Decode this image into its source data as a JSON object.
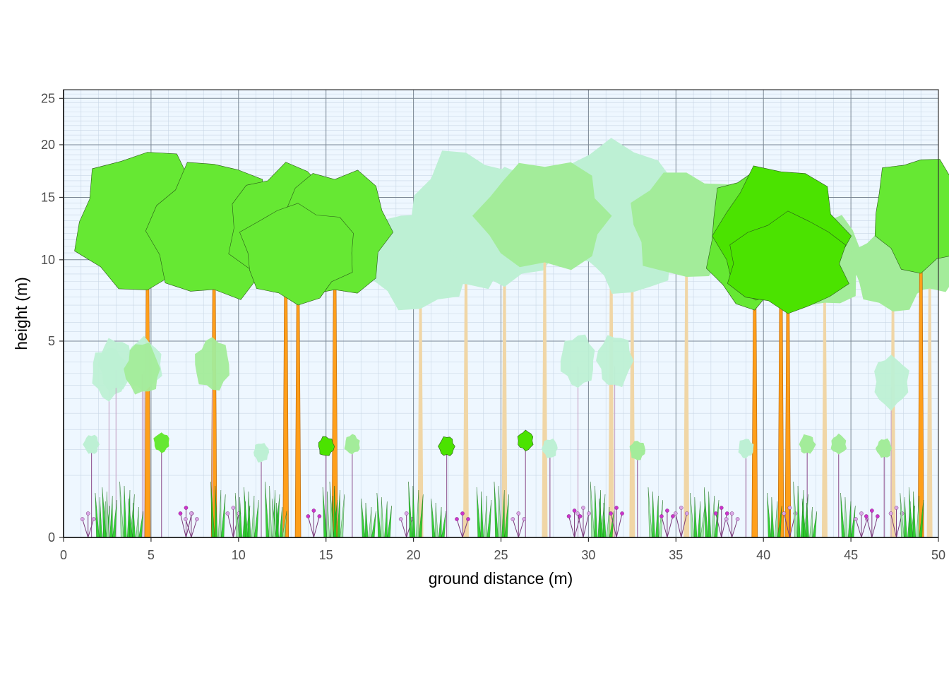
{
  "chart_data": {
    "type": "other",
    "description_kind": "vegetation profile",
    "xlabel": "ground distance (m)",
    "ylabel": "height (m)",
    "xlim": [
      0,
      50
    ],
    "ylim": [
      0,
      26
    ],
    "y_scale": "sqrt",
    "x_ticks": [
      0,
      5,
      10,
      15,
      20,
      25,
      30,
      35,
      40,
      45,
      50
    ],
    "y_ticks": [
      0,
      5,
      10,
      15,
      20,
      25
    ],
    "grid": true,
    "colors": {
      "panel_background": "#eef7ff",
      "major_grid": "#7a8794",
      "minor_grid": "#c9d7e6",
      "trunk": "#ff9f1a",
      "trunk_faded": "#f0d6a6",
      "crown_bright": "#4be300",
      "crown_green": "#66e833",
      "crown_light": "#a3ec9a",
      "crown_pale": "#bdf0d4",
      "flower": "#cc33cc",
      "grass": "#22cc22"
    },
    "trees": [
      {
        "x": 4.8,
        "height": 19,
        "crown_base": 8,
        "crown_width": 9,
        "tone": "green"
      },
      {
        "x": 8.6,
        "height": 18,
        "crown_base": 7.5,
        "crown_width": 8,
        "tone": "green"
      },
      {
        "x": 12.7,
        "height": 17.5,
        "crown_base": 8.2,
        "crown_width": 7,
        "tone": "green"
      },
      {
        "x": 15.5,
        "height": 17.3,
        "crown_base": 7.8,
        "crown_width": 7,
        "tone": "green"
      },
      {
        "x": 13.4,
        "height": 14,
        "crown_base": 7.5,
        "crown_width": 7,
        "tone": "green"
      },
      {
        "x": 20.4,
        "height": 13.5,
        "crown_base": 7,
        "crown_width": 6.5,
        "tone": "pale"
      },
      {
        "x": 23.0,
        "height": 19,
        "crown_base": 8,
        "crown_width": 7,
        "tone": "pale"
      },
      {
        "x": 25.2,
        "height": 17,
        "crown_base": 8.5,
        "crown_width": 6.5,
        "tone": "pale"
      },
      {
        "x": 27.5,
        "height": 18,
        "crown_base": 9.5,
        "crown_width": 8,
        "tone": "light"
      },
      {
        "x": 31.3,
        "height": 20,
        "crown_base": 9,
        "crown_width": 8,
        "tone": "pale"
      },
      {
        "x": 32.5,
        "height": 15,
        "crown_base": 8,
        "crown_width": 6,
        "tone": "pale"
      },
      {
        "x": 35.6,
        "height": 17,
        "crown_base": 9,
        "crown_width": 7,
        "tone": "light"
      },
      {
        "x": 39.5,
        "height": 17,
        "crown_base": 7,
        "crown_width": 6,
        "tone": "green"
      },
      {
        "x": 41.0,
        "height": 17.5,
        "crown_base": 7.2,
        "crown_width": 8,
        "tone": "bright"
      },
      {
        "x": 41.4,
        "height": 13,
        "crown_base": 6.9,
        "crown_width": 7.5,
        "tone": "bright"
      },
      {
        "x": 43.5,
        "height": 13,
        "crown_base": 7.2,
        "crown_width": 5,
        "tone": "light"
      },
      {
        "x": 47.4,
        "height": 12,
        "crown_base": 7,
        "crown_width": 5,
        "tone": "light"
      },
      {
        "x": 49.0,
        "height": 18.5,
        "crown_base": 9.5,
        "crown_width": 6,
        "tone": "green"
      },
      {
        "x": 49.5,
        "height": 14,
        "crown_base": 8,
        "crown_width": 5,
        "tone": "light"
      }
    ],
    "saplings": [
      {
        "x": 2.6,
        "height": 4.2,
        "tone": "pale"
      },
      {
        "x": 3.0,
        "height": 4.6,
        "tone": "pale"
      },
      {
        "x": 4.6,
        "height": 4.6,
        "tone": "pale"
      },
      {
        "x": 4.5,
        "height": 4.4,
        "tone": "light"
      },
      {
        "x": 8.5,
        "height": 4.6,
        "tone": "light"
      },
      {
        "x": 29.4,
        "height": 4.8,
        "tone": "pale"
      },
      {
        "x": 31.5,
        "height": 4.8,
        "tone": "pale"
      },
      {
        "x": 47.3,
        "height": 3.8,
        "tone": "pale"
      }
    ],
    "shrubs": [
      {
        "x": 1.6,
        "height": 1.3,
        "tone": "pale"
      },
      {
        "x": 5.6,
        "height": 1.35,
        "tone": "green"
      },
      {
        "x": 11.3,
        "height": 1.1,
        "tone": "pale"
      },
      {
        "x": 15.0,
        "height": 1.25,
        "tone": "bright"
      },
      {
        "x": 16.5,
        "height": 1.3,
        "tone": "light"
      },
      {
        "x": 21.9,
        "height": 1.25,
        "tone": "bright"
      },
      {
        "x": 26.4,
        "height": 1.4,
        "tone": "bright"
      },
      {
        "x": 27.8,
        "height": 1.2,
        "tone": "pale"
      },
      {
        "x": 32.8,
        "height": 1.15,
        "tone": "light"
      },
      {
        "x": 39.0,
        "height": 1.2,
        "tone": "pale"
      },
      {
        "x": 42.5,
        "height": 1.3,
        "tone": "light"
      },
      {
        "x": 44.3,
        "height": 1.3,
        "tone": "light"
      },
      {
        "x": 46.9,
        "height": 1.2,
        "tone": "light"
      }
    ],
    "herbs": [
      {
        "x": 1.4,
        "kind": "flower"
      },
      {
        "x": 2.2,
        "kind": "grass"
      },
      {
        "x": 2.6,
        "kind": "grass"
      },
      {
        "x": 3.6,
        "kind": "grass"
      },
      {
        "x": 4.1,
        "kind": "grass"
      },
      {
        "x": 7.0,
        "kind": "flower"
      },
      {
        "x": 7.3,
        "kind": "flower"
      },
      {
        "x": 8.8,
        "kind": "grass"
      },
      {
        "x": 9.7,
        "kind": "flower"
      },
      {
        "x": 10.2,
        "kind": "grass"
      },
      {
        "x": 10.7,
        "kind": "grass"
      },
      {
        "x": 11.9,
        "kind": "grass"
      },
      {
        "x": 12.3,
        "kind": "grass"
      },
      {
        "x": 14.3,
        "kind": "flower"
      },
      {
        "x": 15.2,
        "kind": "grass"
      },
      {
        "x": 15.6,
        "kind": "grass"
      },
      {
        "x": 17.4,
        "kind": "grass"
      },
      {
        "x": 18.3,
        "kind": "grass"
      },
      {
        "x": 19.6,
        "kind": "flower"
      },
      {
        "x": 20.1,
        "kind": "grass"
      },
      {
        "x": 21.4,
        "kind": "grass"
      },
      {
        "x": 22.8,
        "kind": "flower"
      },
      {
        "x": 24.0,
        "kind": "grass"
      },
      {
        "x": 25.0,
        "kind": "grass"
      },
      {
        "x": 26.0,
        "kind": "flower"
      },
      {
        "x": 29.2,
        "kind": "flower"
      },
      {
        "x": 29.7,
        "kind": "flower"
      },
      {
        "x": 30.5,
        "kind": "grass"
      },
      {
        "x": 31.0,
        "kind": "grass"
      },
      {
        "x": 31.6,
        "kind": "flower"
      },
      {
        "x": 33.8,
        "kind": "grass"
      },
      {
        "x": 34.5,
        "kind": "flower"
      },
      {
        "x": 35.3,
        "kind": "flower"
      },
      {
        "x": 36.2,
        "kind": "grass"
      },
      {
        "x": 37.0,
        "kind": "grass"
      },
      {
        "x": 37.6,
        "kind": "flower"
      },
      {
        "x": 38.2,
        "kind": "flower"
      },
      {
        "x": 40.6,
        "kind": "grass"
      },
      {
        "x": 41.5,
        "kind": "flower"
      },
      {
        "x": 42.1,
        "kind": "grass"
      },
      {
        "x": 42.6,
        "kind": "grass"
      },
      {
        "x": 44.8,
        "kind": "grass"
      },
      {
        "x": 45.6,
        "kind": "flower"
      },
      {
        "x": 46.2,
        "kind": "flower"
      },
      {
        "x": 47.6,
        "kind": "flower"
      },
      {
        "x": 48.2,
        "kind": "grass"
      },
      {
        "x": 48.7,
        "kind": "grass"
      }
    ]
  }
}
